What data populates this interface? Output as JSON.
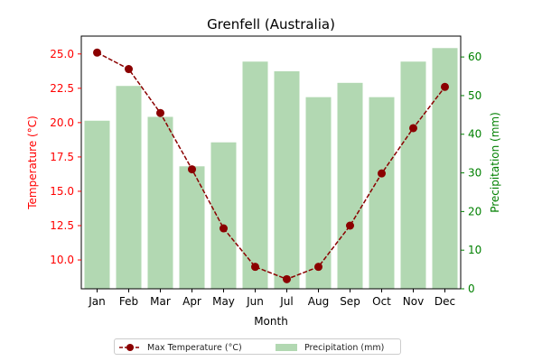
{
  "chart_data": {
    "type": "bar+line",
    "title": "Grenfell (Australia)",
    "xlabel": "Month",
    "categories": [
      "Jan",
      "Feb",
      "Mar",
      "Apr",
      "May",
      "Jun",
      "Jul",
      "Aug",
      "Sep",
      "Oct",
      "Nov",
      "Dec"
    ],
    "temperature": {
      "name": "Max Temperature (°C)",
      "axis_label": "Temperature (°C)",
      "values": [
        25.1,
        23.9,
        20.7,
        16.6,
        12.3,
        9.5,
        8.6,
        9.5,
        12.5,
        16.3,
        19.6,
        22.6
      ],
      "ylim": [
        7.9,
        26.3
      ],
      "ticks": [
        "10.0",
        "12.5",
        "15.0",
        "17.5",
        "20.0",
        "22.5",
        "25.0"
      ],
      "color": "#8b0000",
      "axis_color": "#ff0000"
    },
    "precipitation": {
      "name": "Precipitation (mm)",
      "axis_label": "Precipitation (mm)",
      "values": [
        43.5,
        52.5,
        44.5,
        31.7,
        37.9,
        58.8,
        56.3,
        49.6,
        53.3,
        49.6,
        58.8,
        62.3
      ],
      "ylim": [
        0,
        65.4
      ],
      "ticks": [
        "0",
        "10",
        "20",
        "30",
        "40",
        "50",
        "60"
      ],
      "color": "#b2d8b2",
      "axis_color": "#008000"
    },
    "legend_position": "bottom-center",
    "grid": false
  }
}
